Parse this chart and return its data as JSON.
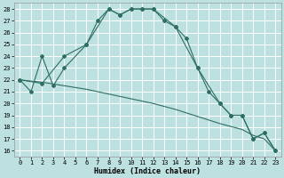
{
  "title": "",
  "xlabel": "Humidex (Indice chaleur)",
  "bg_color": "#bde0e0",
  "grid_color": "#ffffff",
  "line_color": "#2e6e62",
  "xlim": [
    -0.5,
    23.5
  ],
  "ylim": [
    15.5,
    28.5
  ],
  "yticks": [
    16,
    17,
    18,
    19,
    20,
    21,
    22,
    23,
    24,
    25,
    26,
    27,
    28
  ],
  "xticks": [
    0,
    1,
    2,
    3,
    4,
    5,
    6,
    7,
    8,
    9,
    10,
    11,
    12,
    13,
    14,
    15,
    16,
    17,
    18,
    19,
    20,
    21,
    22,
    23
  ],
  "line1_x": [
    0,
    1,
    2,
    3,
    4,
    6,
    7,
    8,
    9,
    10,
    11,
    12,
    13,
    14,
    15,
    16,
    17,
    18,
    19,
    20,
    21,
    22,
    23
  ],
  "line1_y": [
    22.0,
    21.0,
    24.0,
    21.5,
    23.0,
    25.0,
    27.0,
    28.0,
    27.5,
    28.0,
    28.0,
    28.0,
    27.0,
    26.5,
    25.5,
    23.0,
    21.0,
    20.0,
    19.0,
    19.0,
    17.0,
    17.5,
    16.0
  ],
  "line2_x": [
    0,
    2,
    4,
    6,
    8,
    10,
    12,
    14,
    16,
    18,
    20,
    21,
    22,
    23
  ],
  "line2_y": [
    22.0,
    21.8,
    21.5,
    21.2,
    20.8,
    20.4,
    20.0,
    19.5,
    18.9,
    18.3,
    17.8,
    17.3,
    17.0,
    16.0
  ],
  "line3_x": [
    0,
    2,
    4,
    6,
    8,
    9,
    10,
    11,
    12,
    14,
    16,
    18,
    19,
    20,
    21,
    22,
    23
  ],
  "line3_y": [
    22.0,
    21.7,
    24.0,
    25.0,
    28.0,
    27.5,
    28.0,
    28.0,
    28.0,
    26.5,
    23.0,
    20.0,
    19.0,
    19.0,
    17.0,
    17.5,
    16.0
  ]
}
